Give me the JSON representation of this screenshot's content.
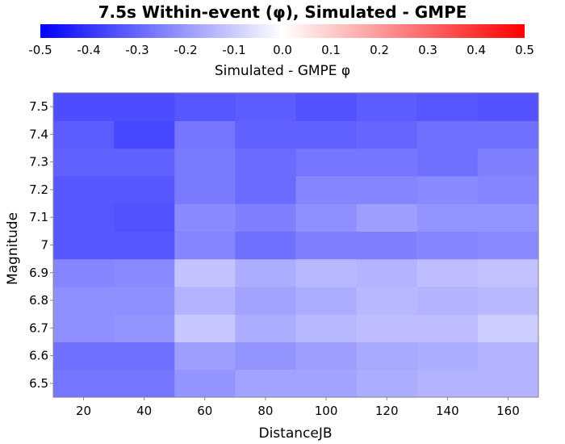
{
  "chart_data": {
    "type": "heatmap",
    "title": "7.5s Within-event (φ), Simulated - GMPE",
    "xlabel": "DistanceJB",
    "ylabel": "Magnitude",
    "colorbar": {
      "label": "Simulated - GMPE φ",
      "range": [
        -0.5,
        0.5
      ],
      "ticks": [
        "-0.5",
        "-0.4",
        "-0.3",
        "-0.2",
        "-0.1",
        "0.0",
        "0.1",
        "0.2",
        "0.3",
        "0.4",
        "0.5"
      ],
      "low_color": "#0000ff",
      "mid_color": "#ffffff",
      "high_color": "#ff0000",
      "placement": "top"
    },
    "x_categories": [
      "20",
      "40",
      "60",
      "80",
      "100",
      "120",
      "140",
      "160"
    ],
    "y_categories": [
      "6.5",
      "6.6",
      "6.7",
      "6.8",
      "6.9",
      "7",
      "7.1",
      "7.2",
      "7.3",
      "7.4",
      "7.5"
    ],
    "values": [
      [
        -0.27,
        -0.27,
        -0.21,
        -0.18,
        -0.18,
        -0.16,
        -0.15,
        -0.15
      ],
      [
        -0.28,
        -0.28,
        -0.19,
        -0.21,
        -0.19,
        -0.17,
        -0.16,
        -0.15
      ],
      [
        -0.22,
        -0.21,
        -0.11,
        -0.16,
        -0.14,
        -0.13,
        -0.13,
        -0.1
      ],
      [
        -0.22,
        -0.22,
        -0.15,
        -0.18,
        -0.16,
        -0.14,
        -0.15,
        -0.14
      ],
      [
        -0.24,
        -0.23,
        -0.12,
        -0.16,
        -0.14,
        -0.15,
        -0.13,
        -0.12
      ],
      [
        -0.33,
        -0.33,
        -0.24,
        -0.28,
        -0.25,
        -0.25,
        -0.24,
        -0.23
      ],
      [
        -0.33,
        -0.34,
        -0.23,
        -0.25,
        -0.22,
        -0.19,
        -0.21,
        -0.21
      ],
      [
        -0.33,
        -0.33,
        -0.26,
        -0.29,
        -0.24,
        -0.24,
        -0.23,
        -0.24
      ],
      [
        -0.31,
        -0.31,
        -0.26,
        -0.29,
        -0.27,
        -0.27,
        -0.28,
        -0.25
      ],
      [
        -0.32,
        -0.36,
        -0.27,
        -0.31,
        -0.31,
        -0.3,
        -0.28,
        -0.28
      ],
      [
        -0.35,
        -0.35,
        -0.33,
        -0.32,
        -0.34,
        -0.32,
        -0.33,
        -0.34
      ]
    ]
  }
}
